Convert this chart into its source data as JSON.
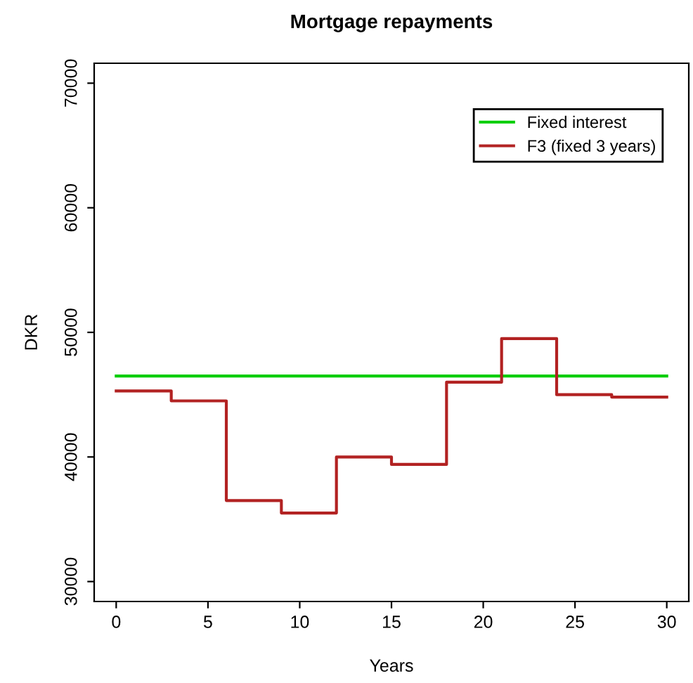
{
  "chart_data": {
    "type": "step",
    "title": "Mortgage repayments",
    "xlabel": "Years",
    "ylabel": "DKR",
    "xlim": [
      -1.2,
      31.2
    ],
    "ylim": [
      28400,
      71600
    ],
    "xticks": [
      0,
      5,
      10,
      15,
      20,
      25,
      30
    ],
    "yticks": [
      30000,
      40000,
      50000,
      60000,
      70000
    ],
    "series": [
      {
        "name": "Fixed interest",
        "color": "#00cd00",
        "x": [
          0,
          30
        ],
        "values": [
          46500,
          46500
        ]
      },
      {
        "name": "F3 (fixed 3 years)",
        "color": "#b22222",
        "x": [
          0,
          3,
          6,
          9,
          12,
          15,
          18,
          21,
          24,
          27,
          30
        ],
        "values": [
          45300,
          44500,
          36500,
          35500,
          40000,
          39400,
          46000,
          49500,
          45000,
          44800,
          44800
        ]
      }
    ],
    "legend": "top right",
    "grid": false
  }
}
